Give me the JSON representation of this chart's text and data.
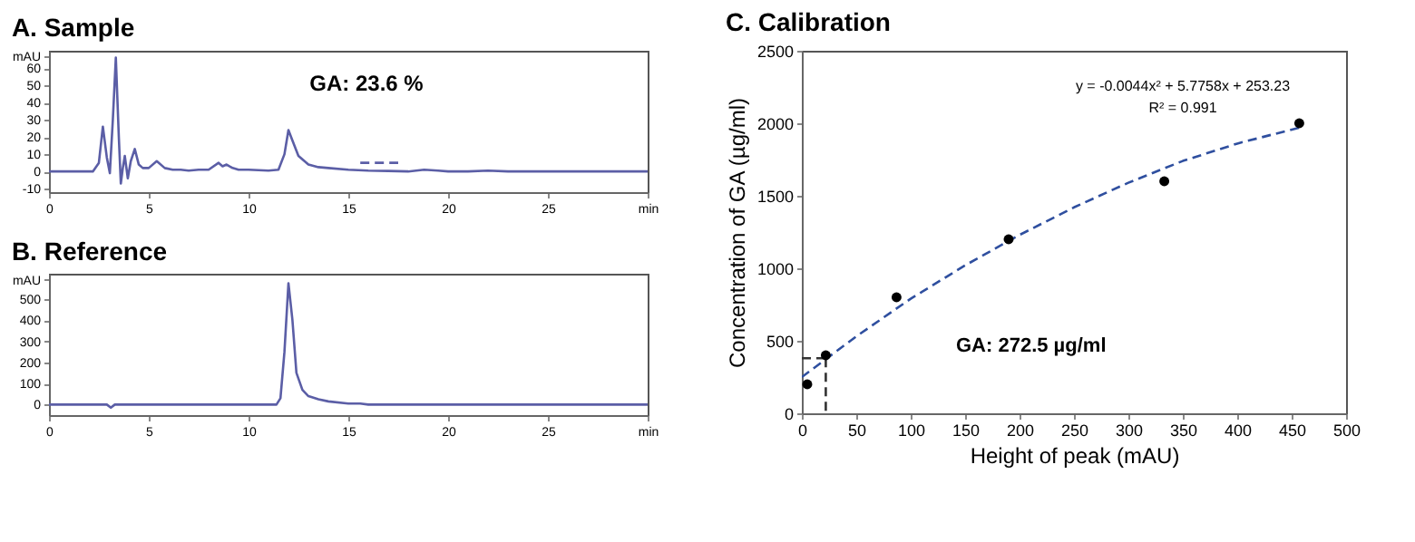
{
  "chart_data": [
    {
      "type": "line",
      "title": "A. Sample",
      "xlim": [
        0,
        30
      ],
      "xticks": [
        0,
        5,
        10,
        15,
        20,
        25,
        {
          "value": 30,
          "label": "min"
        }
      ],
      "ylim": [
        -12,
        70
      ],
      "yticks": [
        -10,
        0,
        10,
        20,
        30,
        40,
        50,
        60,
        {
          "value": 67,
          "label": "mAU"
        }
      ],
      "grid": false,
      "annotations": [
        "GA: 23.6 %"
      ],
      "series": [
        {
          "color": "#5b5ea6",
          "x": [
            0,
            2.2,
            2.5,
            2.7,
            2.9,
            3.05,
            3.2,
            3.35,
            3.5,
            3.6,
            3.7,
            3.8,
            3.95,
            4.1,
            4.3,
            4.5,
            4.7,
            5.0,
            5.4,
            5.8,
            6.2,
            6.6,
            7.0,
            7.5,
            8.0,
            8.5,
            8.7,
            8.9,
            9.2,
            9.5,
            10,
            11,
            11.5,
            11.8,
            12.0,
            12.2,
            12.5,
            13,
            13.5,
            14,
            15,
            16,
            17,
            18,
            18.8,
            19.5,
            20,
            21,
            22,
            23,
            30
          ],
          "values": [
            0,
            0,
            5,
            26,
            8,
            -1,
            30,
            66,
            20,
            -7,
            2,
            9,
            -4,
            6,
            13,
            4,
            2,
            2,
            6,
            2,
            1,
            1,
            0.5,
            1,
            1,
            5,
            3,
            4,
            2,
            1,
            1,
            0.5,
            1,
            10,
            24,
            18,
            9,
            4,
            2.5,
            2,
            1,
            0.5,
            0.3,
            0,
            1,
            0.5,
            0,
            0,
            0.5,
            0,
            0
          ]
        },
        {
          "color": "#5b5ea6",
          "line_style": "dashed",
          "x": [
            15.6,
            17.5
          ],
          "values": [
            5,
            5
          ]
        }
      ]
    },
    {
      "type": "line",
      "title": "B. Reference",
      "xlim": [
        0,
        30
      ],
      "xticks": [
        0,
        5,
        10,
        15,
        20,
        25,
        {
          "value": 30,
          "label": "min"
        }
      ],
      "ylim": [
        -50,
        620
      ],
      "yticks": [
        0,
        100,
        200,
        300,
        400,
        500,
        {
          "value": 590,
          "label": "mAU"
        }
      ],
      "grid": false,
      "series": [
        {
          "color": "#5b5ea6",
          "x": [
            0,
            2.9,
            3.1,
            3.3,
            11.4,
            11.6,
            11.8,
            12.0,
            12.2,
            12.4,
            12.7,
            13,
            13.5,
            14,
            15,
            15.6,
            16,
            30
          ],
          "values": [
            0,
            0,
            -15,
            0,
            0,
            30,
            250,
            575,
            400,
            150,
            70,
            40,
            25,
            15,
            5,
            5,
            0,
            0
          ]
        }
      ]
    },
    {
      "type": "scatter",
      "title": "C. Calibration",
      "xlabel": "Height of peak (mAU)",
      "ylabel": "Concentration of GA (µg/ml)",
      "xlim": [
        0,
        500
      ],
      "xticks": [
        0,
        50,
        100,
        150,
        200,
        250,
        300,
        350,
        400,
        450,
        500
      ],
      "ylim": [
        0,
        2500
      ],
      "yticks": [
        0,
        500,
        1000,
        1500,
        2000,
        2500
      ],
      "grid": false,
      "annotations": [
        "y = -0.0044x² + 5.7758x + 253.23",
        "R² = 0.991",
        "GA: 272.5 µg/ml"
      ],
      "series": [
        {
          "type": "line",
          "color": "#2f4f9f",
          "line_style": "dashed",
          "x": [
            0,
            50,
            100,
            150,
            200,
            250,
            300,
            350,
            400,
            457
          ],
          "values": [
            250,
            530,
            790,
            1020,
            1230,
            1420,
            1590,
            1740,
            1860,
            1970
          ]
        },
        {
          "type": "line",
          "color": "#333333",
          "line_style": "dashed",
          "x": [
            0,
            22
          ],
          "values": [
            380,
            380
          ]
        },
        {
          "type": "line",
          "color": "#333333",
          "line_style": "dashed",
          "x": [
            22,
            22
          ],
          "values": [
            380,
            0
          ]
        },
        {
          "type": "scatter",
          "color": "#000000",
          "x": [
            5,
            22,
            87,
            190,
            333,
            457
          ],
          "values": [
            200,
            400,
            800,
            1200,
            1600,
            2000
          ]
        }
      ]
    }
  ]
}
